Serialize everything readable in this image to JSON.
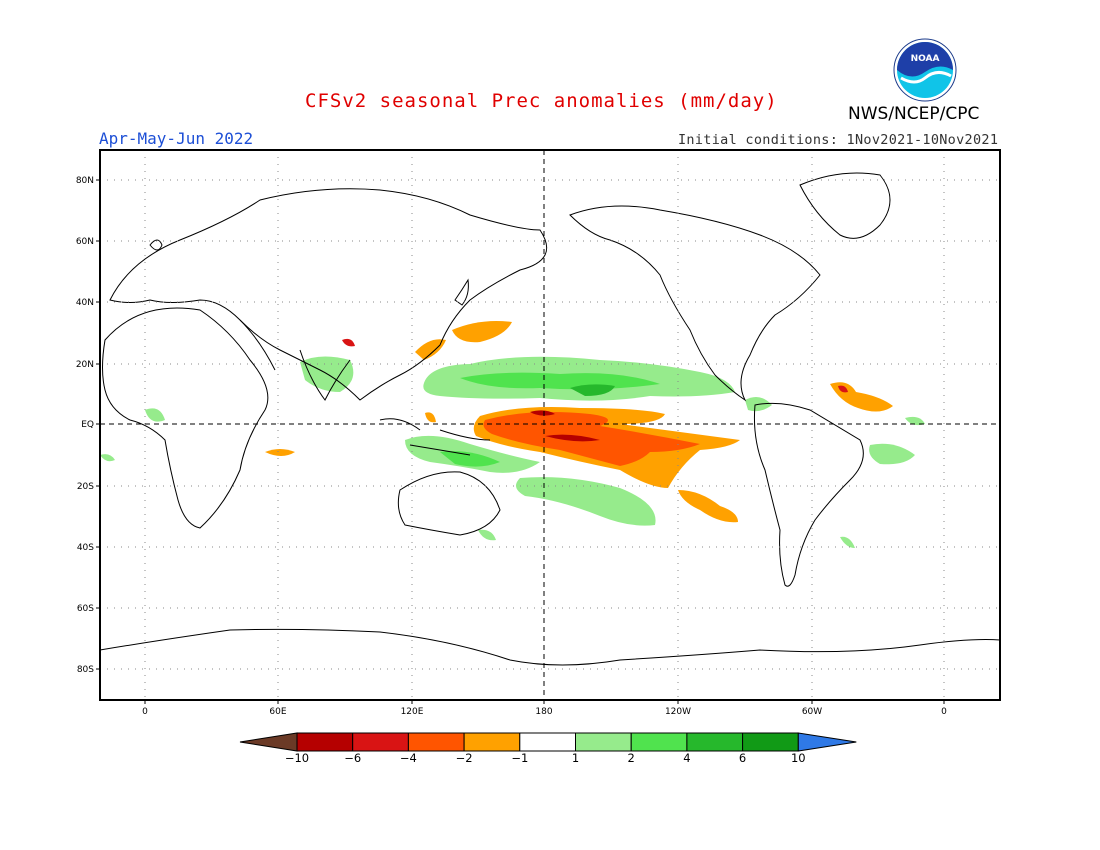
{
  "header": {
    "title": "CFSv2 seasonal Prec anomalies (mm/day)",
    "agency": "NWS/NCEP/CPC",
    "season": "Apr-May-Jun 2022",
    "initial_conditions": "Initial conditions: 1Nov2021-10Nov2021"
  },
  "logo": {
    "text": "NOAA",
    "icon": "noaa-logo-icon"
  },
  "map": {
    "projection": "cylindrical-equidistant",
    "lat_ticks": [
      "80N",
      "60N",
      "40N",
      "20N",
      "EQ",
      "20S",
      "40S",
      "60S",
      "80S"
    ],
    "lon_ticks": [
      "0",
      "60E",
      "120E",
      "180",
      "120W",
      "60W",
      "0"
    ],
    "grid": "dotted",
    "reference_lines": [
      "equator",
      "dateline"
    ]
  },
  "colorbar": {
    "labels": [
      "-10",
      "-6",
      "-4",
      "-2",
      "-1",
      "1",
      "2",
      "4",
      "6",
      "10"
    ],
    "colors": [
      "#6b3a26",
      "#b50000",
      "#d91414",
      "#ff5500",
      "#ffa100",
      "#ffffff",
      "#96eb8c",
      "#50e34e",
      "#26b82c",
      "#119a16",
      "#2f79e6"
    ]
  }
}
